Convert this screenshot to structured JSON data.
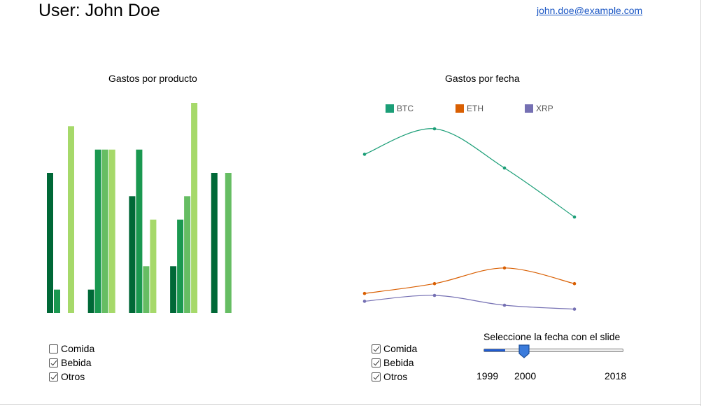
{
  "header": {
    "user_label": "User: John Doe",
    "email": "john.doe@example.com"
  },
  "left_chart": {
    "title": "Gastos por producto"
  },
  "right_chart": {
    "title": "Gastos por fecha",
    "legend": [
      {
        "name": "BTC",
        "color": "#1b9e77"
      },
      {
        "name": "ETH",
        "color": "#d95f02"
      },
      {
        "name": "XRP",
        "color": "#7570b3"
      }
    ]
  },
  "left_filters": [
    {
      "label": "Comida",
      "checked": false
    },
    {
      "label": "Bebida",
      "checked": true
    },
    {
      "label": "Otros",
      "checked": true
    }
  ],
  "right_filters": [
    {
      "label": "Comida",
      "checked": true
    },
    {
      "label": "Bebida",
      "checked": true
    },
    {
      "label": "Otros",
      "checked": true
    }
  ],
  "slider": {
    "label": "Seleccione la fecha con el slide",
    "min_label": "1999",
    "selected_label": "2000",
    "max_label": "2018",
    "min": 1999,
    "max": 2018,
    "value": 2000
  },
  "chart_data": [
    {
      "type": "bar",
      "title": "Gastos por producto",
      "categories": [
        "",
        "",
        "",
        "",
        ""
      ],
      "series_colors": [
        "#006837",
        "#1a9850",
        "#66bd63",
        "#a6d96a"
      ],
      "series": [
        {
          "values": [
            6,
            1,
            5,
            2,
            6
          ]
        },
        {
          "values": [
            1,
            7,
            7,
            4,
            0
          ]
        },
        {
          "values": [
            0,
            7,
            2,
            5,
            6
          ]
        },
        {
          "values": [
            8,
            7,
            4,
            9,
            0
          ]
        }
      ],
      "ylim": [
        0,
        9
      ]
    },
    {
      "type": "line",
      "title": "Gastos por fecha",
      "x": [
        1,
        2,
        3,
        4
      ],
      "ylim": [
        0,
        100
      ],
      "series": [
        {
          "name": "BTC",
          "color": "#1b9e77",
          "values": [
            82,
            95,
            75,
            50
          ]
        },
        {
          "name": "ETH",
          "color": "#d95f02",
          "values": [
            11,
            16,
            24,
            16
          ]
        },
        {
          "name": "XRP",
          "color": "#7570b3",
          "values": [
            7,
            10,
            5,
            3
          ]
        }
      ]
    }
  ]
}
